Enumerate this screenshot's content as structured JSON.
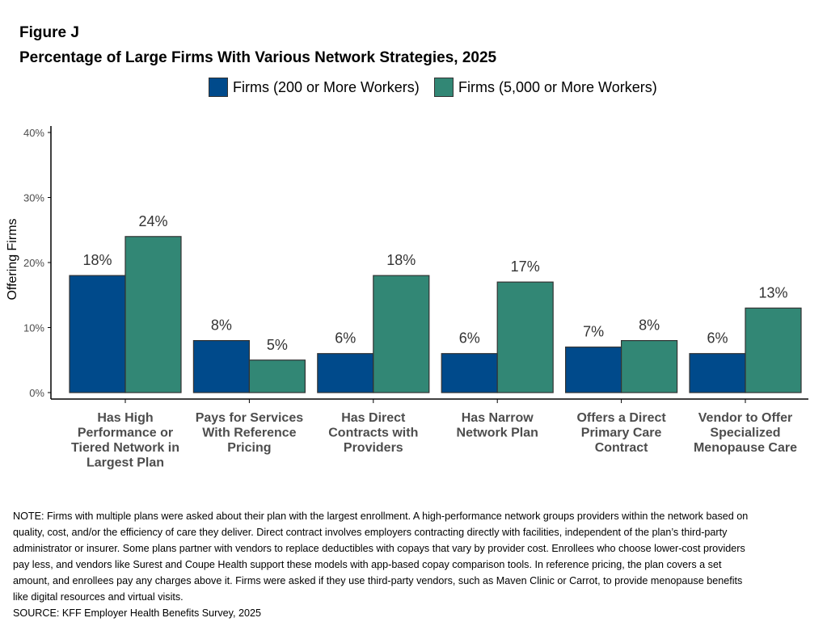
{
  "figure_label": "Figure J",
  "title": "Percentage of Large Firms With Various Network Strategies, 2025",
  "legend": [
    {
      "label": "Firms (200 or More Workers)",
      "color": "#004a8b"
    },
    {
      "label": "Firms (5,000 or More Workers)",
      "color": "#328775"
    }
  ],
  "chart_data": {
    "type": "bar",
    "title": "Percentage of Large Firms With Various Network Strategies, 2025",
    "xlabel": "",
    "ylabel": "Offering Firms",
    "ylim": [
      0,
      40
    ],
    "yticks": [
      "0%",
      "10%",
      "20%",
      "30%",
      "40%"
    ],
    "grid": false,
    "legend_position": "top",
    "categories": [
      [
        "Has High",
        "Performance or",
        "Tiered Network in",
        "Largest Plan"
      ],
      [
        "Pays for Services",
        "With Reference",
        "Pricing"
      ],
      [
        "Has Direct",
        "Contracts with",
        "Providers"
      ],
      [
        "Has Narrow",
        "Network Plan"
      ],
      [
        "Offers a Direct",
        "Primary Care",
        "Contract"
      ],
      [
        "Vendor to Offer",
        "Specialized",
        "Menopause Care"
      ]
    ],
    "series": [
      {
        "name": "Firms (200 or More Workers)",
        "color": "#004a8b",
        "values": [
          18,
          8,
          6,
          6,
          7,
          6
        ],
        "labels": [
          "18%",
          "8%",
          "6%",
          "6%",
          "7%",
          "6%"
        ]
      },
      {
        "name": "Firms (5,000 or More Workers)",
        "color": "#328775",
        "values": [
          24,
          5,
          18,
          17,
          8,
          13
        ],
        "labels": [
          "24%",
          "5%",
          "18%",
          "17%",
          "8%",
          "13%"
        ]
      }
    ]
  },
  "note": "NOTE: Firms with multiple plans were asked about their plan with the largest enrollment.  A high-performance network groups providers within the network based on quality, cost, and/or the efficiency of care they deliver.  Direct contract involves employers contracting directly with facilities, independent of the plan’s third-party administrator or insurer.  Some plans partner with vendors to replace deductibles with copays that vary by provider cost. Enrollees who choose lower-cost providers pay less, and vendors like Surest and Coupe Health support these models with app-based copay comparison tools. In reference pricing, the plan covers a set amount, and enrollees pay any charges above it. Firms were asked if they use third-party vendors, such as Maven Clinic or Carrot, to provide menopause benefits like digital resources and virtual visits.",
  "source": "SOURCE: KFF Employer Health Benefits Survey, 2025"
}
